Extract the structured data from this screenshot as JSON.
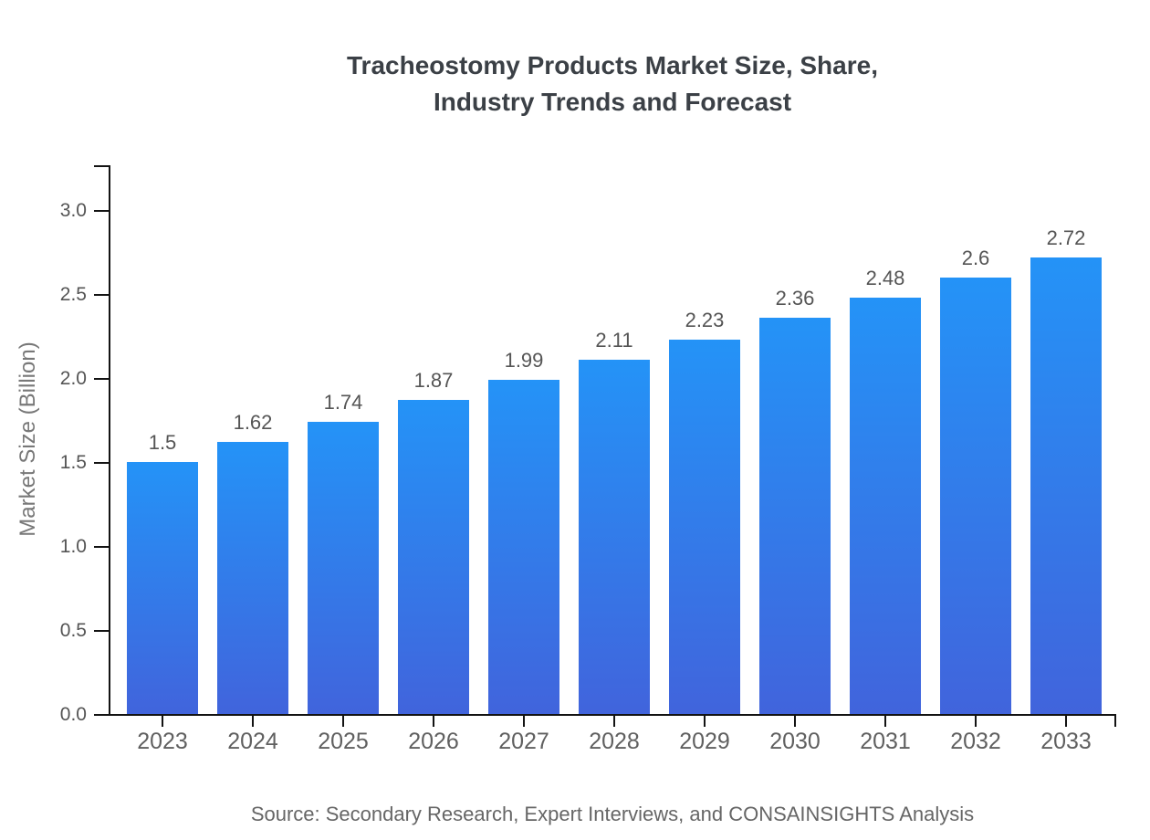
{
  "page": {
    "background_color": "#ffffff"
  },
  "chart_data": {
    "type": "bar",
    "title": "Tracheostomy Products Market Size, Share, Industry Trends and Forecast",
    "title_lines": [
      "Tracheostomy Products Market Size, Share,",
      "Industry Trends and Forecast"
    ],
    "xlabel": "",
    "ylabel": "Market Size (Billion)",
    "categories": [
      "2023",
      "2024",
      "2025",
      "2026",
      "2027",
      "2028",
      "2029",
      "2030",
      "2031",
      "2032",
      "2033"
    ],
    "values": [
      1.5,
      1.62,
      1.74,
      1.87,
      1.99,
      2.11,
      2.23,
      2.36,
      2.48,
      2.6,
      2.72
    ],
    "value_labels": [
      "1.5",
      "1.62",
      "1.74",
      "1.87",
      "1.99",
      "2.11",
      "2.23",
      "2.36",
      "2.48",
      "2.6",
      "2.72"
    ],
    "yticks": [
      0.0,
      0.5,
      1.0,
      1.5,
      2.0,
      2.5,
      3.0
    ],
    "ytick_labels": [
      "0.0",
      "0.5",
      "1.0",
      "1.5",
      "2.0",
      "2.5",
      "3.0"
    ],
    "ylim": [
      0,
      3.25
    ],
    "grid": false,
    "legend_position": "none",
    "source_note": "Source: Secondary Research, Expert Interviews, and CONSAINSIGHTS Analysis",
    "colors": {
      "bar_gradient_top": "#2493f7",
      "bar_gradient_bottom": "#4164dc",
      "axis_line": "#131313",
      "title_text": "#3b4046",
      "axis_label_text": "#787878",
      "tick_label_text": "#555555",
      "category_label_text": "#606060",
      "source_text": "#666666"
    }
  }
}
